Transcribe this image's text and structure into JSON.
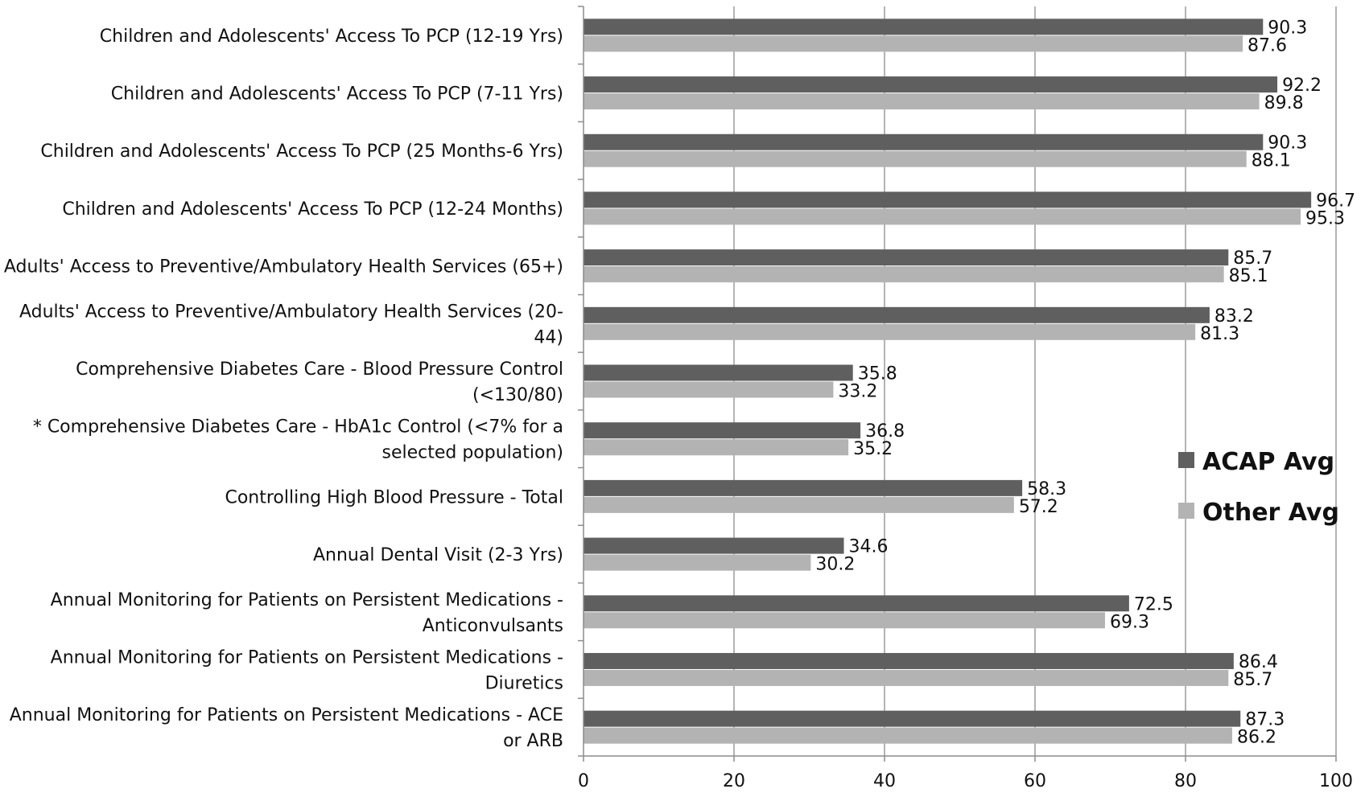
{
  "chart_data": {
    "type": "bar",
    "orientation": "horizontal",
    "categories": [
      "Children and Adolescents' Access To PCP (12-19 Yrs)",
      "Children and Adolescents' Access To PCP (7-11 Yrs)",
      "Children and Adolescents' Access To PCP (25 Months-6 Yrs)",
      "Children and Adolescents' Access To PCP (12-24 Months)",
      "Adults' Access to Preventive/Ambulatory Health Services (65+)",
      "Adults' Access to Preventive/Ambulatory Health Services (20-44)",
      "Comprehensive Diabetes Care - Blood Pressure Control (<130/80)",
      "* Comprehensive Diabetes Care - HbA1c Control (<7% for a selected population)",
      "Controlling High Blood Pressure - Total",
      "Annual Dental Visit (2-3 Yrs)",
      "Annual Monitoring for Patients on Persistent Medications - Anticonvulsants",
      "Annual Monitoring for Patients on Persistent Medications - Diuretics",
      "Annual Monitoring for Patients on Persistent Medications - ACE or ARB"
    ],
    "category_lines": [
      [
        "Children and Adolescents' Access To PCP (12-19 Yrs)"
      ],
      [
        "Children and Adolescents' Access To PCP (7-11 Yrs)"
      ],
      [
        "Children and Adolescents' Access To PCP (25 Months-6 Yrs)"
      ],
      [
        "Children and Adolescents' Access To PCP (12-24 Months)"
      ],
      [
        "Adults' Access to Preventive/Ambulatory Health Services (65+)"
      ],
      [
        "Adults' Access to Preventive/Ambulatory Health Services (20-",
        "44)"
      ],
      [
        "Comprehensive Diabetes Care - Blood Pressure Control",
        "(<130/80)"
      ],
      [
        "* Comprehensive Diabetes Care - HbA1c Control (<7% for a",
        "selected population)"
      ],
      [
        "Controlling High Blood Pressure - Total"
      ],
      [
        "Annual Dental Visit (2-3 Yrs)"
      ],
      [
        "Annual Monitoring for Patients on Persistent Medications -",
        "Anticonvulsants"
      ],
      [
        "Annual Monitoring for Patients on Persistent Medications -",
        "Diuretics"
      ],
      [
        "Annual Monitoring for Patients on Persistent Medications - ACE",
        "or ARB"
      ]
    ],
    "series": [
      {
        "name": "ACAP Avg",
        "color": "#5f5f5f",
        "values": [
          90.3,
          92.2,
          90.3,
          96.7,
          85.7,
          83.2,
          35.8,
          36.8,
          58.3,
          34.6,
          72.5,
          86.4,
          87.3
        ],
        "labels": [
          "90.3",
          "92.2",
          "90.3",
          "96.7",
          "85.7",
          "83.2",
          "35.8",
          "36.8",
          "58.3",
          "34.6",
          "72.5",
          "86.4",
          "87.3"
        ]
      },
      {
        "name": "Other Avg",
        "color": "#b3b3b3",
        "values": [
          87.6,
          89.8,
          88.1,
          95.3,
          85.1,
          81.3,
          33.2,
          35.2,
          57.2,
          30.2,
          69.3,
          85.7,
          86.2
        ],
        "labels": [
          "87.6",
          "89.8",
          "88.1",
          "95.3",
          "85.1",
          "81.3",
          "33.2",
          "35.2",
          "57.2",
          "30.2",
          "69.3",
          "85.7",
          "86.2"
        ]
      }
    ],
    "xlim": [
      0,
      100
    ],
    "x_ticks": [
      0,
      20,
      40,
      60,
      80,
      100
    ],
    "x_tick_labels": [
      "0",
      "20",
      "40",
      "60",
      "80",
      "100"
    ],
    "title": "",
    "xlabel": "",
    "ylabel": "",
    "grid": "vertical",
    "legend_position": "right"
  },
  "colors": {
    "grid": "#8c8c8c",
    "axis": "#8c8c8c",
    "text": "#111111"
  }
}
